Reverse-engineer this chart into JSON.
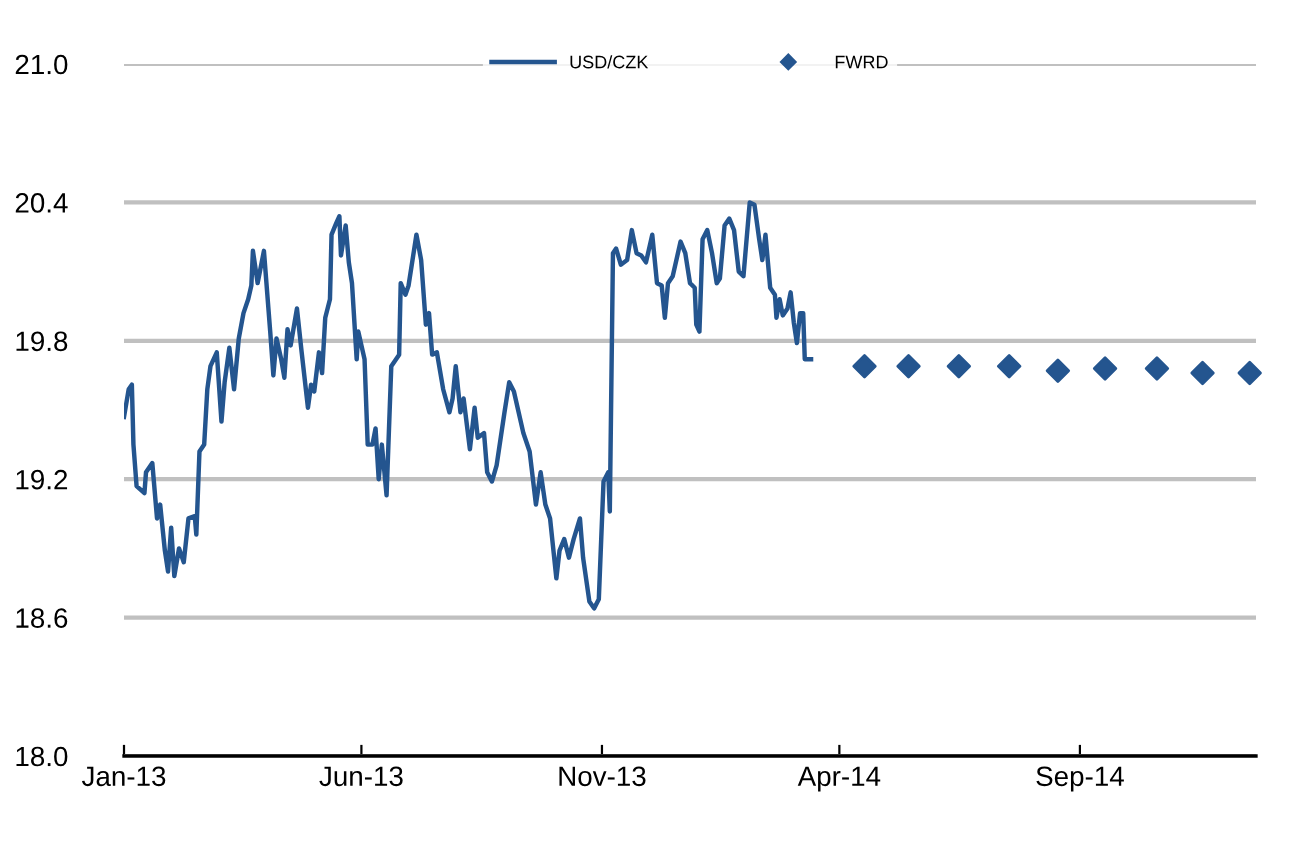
{
  "chart_data": {
    "type": "line",
    "xlim": [
      "2013-01-01",
      "2014-12-22"
    ],
    "xticks": [
      {
        "value": "2013-01-01",
        "label": "Jan-13"
      },
      {
        "value": "2013-06-01",
        "label": "Jun-13"
      },
      {
        "value": "2013-11-01",
        "label": "Nov-13"
      },
      {
        "value": "2014-04-01",
        "label": "Apr-14"
      },
      {
        "value": "2014-09-01",
        "label": "Sep-14"
      }
    ],
    "ylim": [
      18.0,
      21.0
    ],
    "yticks": [
      {
        "value": 18.0,
        "label": "18.0"
      },
      {
        "value": 18.6,
        "label": "18.6"
      },
      {
        "value": 19.2,
        "label": "19.2"
      },
      {
        "value": 19.8,
        "label": "19.8"
      },
      {
        "value": 20.4,
        "label": "20.4"
      },
      {
        "value": 21.0,
        "label": "21.0"
      }
    ],
    "grid": "y",
    "legend": "top",
    "series": [
      {
        "name": "USD/CZK",
        "color": "#24558f",
        "marker": "none",
        "line_style": "solid",
        "x": [
          "2013-01-01",
          "2013-01-04",
          "2013-01-06",
          "2013-01-07",
          "2013-01-09",
          "2013-01-14",
          "2013-01-15",
          "2013-01-19",
          "2013-01-22",
          "2013-01-24",
          "2013-01-27",
          "2013-01-29",
          "2013-01-31",
          "2013-02-02",
          "2013-02-05",
          "2013-02-08",
          "2013-02-11",
          "2013-02-15",
          "2013-02-16",
          "2013-02-18",
          "2013-02-21",
          "2013-02-23",
          "2013-02-25",
          "2013-03-01",
          "2013-03-04",
          "2013-03-06",
          "2013-03-09",
          "2013-03-12",
          "2013-03-15",
          "2013-03-18",
          "2013-03-21",
          "2013-03-23",
          "2013-03-24",
          "2013-03-27",
          "2013-03-31",
          "2013-04-04",
          "2013-04-06",
          "2013-04-08",
          "2013-04-11",
          "2013-04-13",
          "2013-04-15",
          "2013-04-17",
          "2013-04-21",
          "2013-04-24",
          "2013-04-28",
          "2013-04-30",
          "2013-05-02",
          "2013-05-05",
          "2013-05-07",
          "2013-05-09",
          "2013-05-12",
          "2013-05-13",
          "2013-05-16",
          "2013-05-18",
          "2013-05-19",
          "2013-05-22",
          "2013-05-24",
          "2013-05-26",
          "2013-05-29",
          "2013-05-30",
          "2013-06-03",
          "2013-06-05",
          "2013-06-08",
          "2013-06-10",
          "2013-06-12",
          "2013-06-14",
          "2013-06-17",
          "2013-06-20",
          "2013-06-25",
          "2013-06-26",
          "2013-06-29",
          "2013-07-01",
          "2013-07-06",
          "2013-07-09",
          "2013-07-12",
          "2013-07-14",
          "2013-07-16",
          "2013-07-19",
          "2013-07-23",
          "2013-07-27",
          "2013-07-29",
          "2013-07-31",
          "2013-08-03",
          "2013-08-05",
          "2013-08-09",
          "2013-08-12",
          "2013-08-14",
          "2013-08-18",
          "2013-08-20",
          "2013-08-23",
          "2013-08-26",
          "2013-08-31",
          "2013-09-03",
          "2013-09-06",
          "2013-09-09",
          "2013-09-12",
          "2013-09-16",
          "2013-09-20",
          "2013-09-23",
          "2013-09-26",
          "2013-09-29",
          "2013-10-03",
          "2013-10-05",
          "2013-10-08",
          "2013-10-11",
          "2013-10-14",
          "2013-10-18",
          "2013-10-20",
          "2013-10-24",
          "2013-10-27",
          "2013-10-30",
          "2013-11-02",
          "2013-11-05",
          "2013-11-06",
          "2013-11-08",
          "2013-11-10",
          "2013-11-13",
          "2013-11-17",
          "2013-11-20",
          "2013-11-23",
          "2013-11-26",
          "2013-11-29",
          "2013-12-03",
          "2013-12-06",
          "2013-12-09",
          "2013-12-11",
          "2013-12-13",
          "2013-12-16",
          "2013-12-21",
          "2013-12-24",
          "2013-12-27",
          "2013-12-30",
          "2013-12-31",
          "2014-01-02",
          "2014-01-04",
          "2014-01-07",
          "2014-01-10",
          "2014-01-13",
          "2014-01-15",
          "2014-01-18",
          "2014-01-21",
          "2014-01-24",
          "2014-01-27",
          "2014-01-30",
          "2014-02-03",
          "2014-02-06",
          "2014-02-09",
          "2014-02-11",
          "2014-02-13",
          "2014-02-16",
          "2014-02-19",
          "2014-02-20",
          "2014-02-22",
          "2014-02-24",
          "2014-02-27",
          "2014-03-01",
          "2014-03-03",
          "2014-03-05",
          "2014-03-07",
          "2014-03-09",
          "2014-03-10",
          "2014-03-14"
        ],
        "values": [
          19.47,
          19.59,
          19.61,
          19.35,
          19.17,
          19.14,
          19.23,
          19.27,
          19.03,
          19.09,
          18.89,
          18.8,
          18.99,
          18.78,
          18.9,
          18.84,
          19.03,
          19.04,
          18.96,
          19.32,
          19.35,
          19.59,
          19.69,
          19.75,
          19.45,
          19.62,
          19.77,
          19.59,
          19.81,
          19.92,
          19.98,
          20.04,
          20.19,
          20.05,
          20.19,
          19.84,
          19.65,
          19.81,
          19.72,
          19.64,
          19.85,
          19.78,
          19.94,
          19.75,
          19.51,
          19.61,
          19.58,
          19.75,
          19.66,
          19.9,
          19.98,
          20.26,
          20.31,
          20.34,
          20.17,
          20.3,
          20.14,
          20.05,
          19.72,
          19.84,
          19.72,
          19.35,
          19.35,
          19.42,
          19.2,
          19.35,
          19.13,
          19.69,
          19.74,
          20.05,
          20.0,
          20.04,
          20.26,
          20.15,
          19.87,
          19.92,
          19.74,
          19.75,
          19.59,
          19.49,
          19.55,
          19.69,
          19.49,
          19.55,
          19.33,
          19.51,
          19.38,
          19.4,
          19.23,
          19.19,
          19.26,
          19.49,
          19.62,
          19.58,
          19.49,
          19.4,
          19.32,
          19.09,
          19.23,
          19.09,
          19.03,
          18.77,
          18.89,
          18.94,
          18.86,
          18.94,
          19.03,
          18.86,
          18.67,
          18.64,
          18.68,
          19.19,
          19.23,
          19.06,
          20.18,
          20.2,
          20.13,
          20.15,
          20.28,
          20.18,
          20.17,
          20.14,
          20.26,
          20.05,
          20.04,
          19.9,
          20.05,
          20.08,
          20.23,
          20.18,
          20.05,
          20.03,
          19.87,
          19.84,
          20.24,
          20.28,
          20.18,
          20.05,
          20.07,
          20.3,
          20.33,
          20.28,
          20.1,
          20.08,
          20.4,
          20.39,
          20.24,
          20.15,
          20.26,
          20.03,
          20.0,
          19.9,
          19.98,
          19.91,
          19.94,
          20.01,
          19.88,
          19.79,
          19.92,
          19.92,
          19.72,
          19.72
        ]
      },
      {
        "name": "FWRD",
        "type": "scatter",
        "color": "#24558f",
        "marker": "diamond",
        "x": [
          "2014-04-17",
          "2014-05-15",
          "2014-06-16",
          "2014-07-18",
          "2014-08-18",
          "2014-09-17",
          "2014-10-20",
          "2014-11-18",
          "2014-12-18"
        ],
        "values": [
          19.69,
          19.69,
          19.69,
          19.69,
          19.67,
          19.68,
          19.68,
          19.66,
          19.66
        ]
      }
    ]
  }
}
